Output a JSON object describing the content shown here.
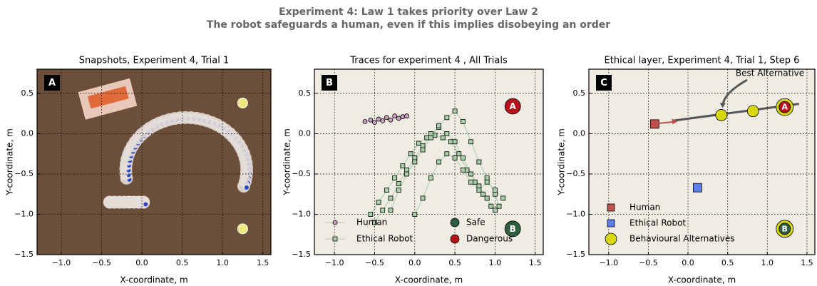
{
  "title": "Experiment 4: Law 1 takes priority over Law 2",
  "subtitle": "The robot safeguards a human, even if this implies disobeying an order",
  "chart_data": [
    {
      "type": "image",
      "title": "Snapshots, Experiment 4, Trial 1",
      "panel_label": "A",
      "xlabel": "X-coordinate, m",
      "ylabel": "Y-coordinate, m",
      "grid": true,
      "xlim": [
        -1.3,
        1.6
      ],
      "ylim": [
        -1.5,
        0.8
      ],
      "xticks": [
        {
          "value": -1,
          "label": "−1.0"
        },
        {
          "value": -0.5,
          "label": "−0.5"
        },
        {
          "value": 0,
          "label": "0.0"
        },
        0.5,
        {
          "value": 1,
          "label": "1.0"
        },
        1.5
      ],
      "yticks": [
        {
          "value": -1.5,
          "label": "−1.5"
        },
        {
          "value": -1,
          "label": "−1.0"
        },
        {
          "value": -0.5,
          "label": "−0.5"
        },
        {
          "value": 0,
          "label": "0.0"
        },
        0.5
      ]
    },
    {
      "type": "scatter",
      "title": "Traces for experiment 4 , All Trials",
      "panel_label": "B",
      "xlabel": "X-coordinate, m",
      "ylabel": "Y-coordinate, m",
      "grid": true,
      "xlim": [
        -1.25,
        1.6
      ],
      "ylim": [
        -1.5,
        0.8
      ],
      "xticks": [
        {
          "value": -1,
          "label": "−1.0"
        },
        {
          "value": -0.5,
          "label": "−0.5"
        },
        {
          "value": 0,
          "label": "0.0"
        },
        0.5,
        {
          "value": 1,
          "label": "1.0"
        },
        1.5
      ],
      "yticks": [
        {
          "value": -1.5,
          "label": "−1.5"
        },
        {
          "value": -1,
          "label": "−1.0"
        },
        {
          "value": -0.5,
          "label": "−0.5"
        },
        {
          "value": 0,
          "label": "0.0"
        },
        0.5
      ],
      "series": [
        {
          "name": "Human",
          "color": "#c9a0c0",
          "marker": "circle",
          "line": true,
          "x": [
            -0.62,
            -0.55,
            -0.5,
            -0.45,
            -0.4,
            -0.35,
            -0.3,
            -0.25,
            -0.2,
            -0.15,
            -0.1
          ],
          "y": [
            0.15,
            0.17,
            0.14,
            0.18,
            0.16,
            0.2,
            0.17,
            0.22,
            0.19,
            0.21,
            0.22
          ]
        },
        {
          "name": "Ethical Robot",
          "color": "#a8cfa8",
          "marker": "square",
          "line": true,
          "x": [
            -0.55,
            -0.45,
            -0.35,
            -0.25,
            -0.15,
            -0.05,
            0.05,
            0.15,
            0.25,
            0.35,
            0.45,
            0.55,
            0.65,
            0.75,
            0.85,
            0.95,
            null,
            -0.5,
            -0.4,
            -0.3,
            -0.2,
            -0.1,
            0.0,
            0.1,
            0.2,
            0.3,
            0.4,
            0.5,
            0.6,
            0.7,
            0.8,
            0.9,
            1.0,
            null,
            -0.3,
            -0.2,
            -0.1,
            0.0,
            0.1,
            0.2,
            0.3,
            0.4,
            0.5,
            0.6,
            0.7,
            0.8,
            0.9,
            1.0,
            1.05,
            null,
            0.0,
            0.1,
            0.2,
            0.3,
            0.4,
            0.5,
            0.6,
            0.7,
            0.8,
            0.9,
            1.0,
            1.1
          ],
          "y": [
            -1.0,
            -0.85,
            -0.7,
            -0.55,
            -0.4,
            -0.25,
            -0.12,
            -0.05,
            -0.02,
            -0.05,
            -0.1,
            -0.25,
            -0.45,
            -0.6,
            -0.75,
            -0.9,
            null,
            -1.1,
            -0.95,
            -0.8,
            -0.62,
            -0.45,
            -0.3,
            -0.15,
            0.0,
            0.08,
            0.0,
            -0.1,
            -0.3,
            -0.5,
            -0.65,
            -0.8,
            -0.95,
            null,
            -0.95,
            -0.7,
            -0.5,
            -0.35,
            -0.2,
            -0.05,
            0.1,
            0.2,
            0.28,
            0.15,
            -0.1,
            -0.35,
            -0.55,
            -0.75,
            -0.9,
            null,
            -1.0,
            -0.8,
            -0.55,
            -0.35,
            -0.25,
            -0.3,
            -0.45,
            -0.6,
            -0.7,
            -0.6,
            -0.7,
            -0.8
          ]
        },
        {
          "name": "Safe",
          "color": "#2e5e3e",
          "marker": "circle",
          "marker_label": "B",
          "x": [
            1.22
          ],
          "y": [
            -1.18
          ]
        },
        {
          "name": "Dangerous",
          "color": "#b5121b",
          "marker": "circle",
          "marker_label": "A",
          "x": [
            1.22
          ],
          "y": [
            0.34
          ]
        }
      ]
    },
    {
      "type": "scatter",
      "title": "Ethical layer, Experiment 4, Trial 1, Step 6",
      "panel_label": "C",
      "xlabel": "X-coordinate, m",
      "ylabel": "Y-coordinate, m",
      "grid": true,
      "xlim": [
        -1.25,
        1.6
      ],
      "ylim": [
        -1.5,
        0.8
      ],
      "xticks": [
        {
          "value": -1,
          "label": "−1.0"
        },
        {
          "value": -0.5,
          "label": "−0.5"
        },
        {
          "value": 0,
          "label": "0.0"
        },
        0.5,
        {
          "value": 1,
          "label": "1.0"
        },
        1.5
      ],
      "yticks": [
        {
          "value": -1.5,
          "label": "−1.5"
        },
        {
          "value": -1,
          "label": "−1.0"
        },
        {
          "value": -0.5,
          "label": "−0.5"
        },
        {
          "value": 0,
          "label": "0.0"
        },
        0.5
      ],
      "annotation": "Best Alternative",
      "trajectory": {
        "x": [
          -0.2,
          1.4
        ],
        "y": [
          0.16,
          0.37
        ]
      },
      "markers": [
        {
          "label": "A",
          "color": "#b5121b",
          "x": 1.22,
          "y": 0.33
        },
        {
          "label": "B",
          "color": "#2e5e3e",
          "x": 1.22,
          "y": -1.18
        }
      ],
      "series": [
        {
          "name": "Human",
          "color": "#c0504d",
          "marker": "square",
          "x": [
            -0.42
          ],
          "y": [
            0.12
          ]
        },
        {
          "name": "Ethical Robot",
          "color": "#5b7ff0",
          "marker": "square",
          "x": [
            0.12
          ],
          "y": [
            -0.67
          ]
        },
        {
          "name": "Behavioural Alternatives",
          "color": "#d8d810",
          "marker": "circle",
          "x": [
            0.42,
            0.82,
            1.22,
            1.22
          ],
          "y": [
            0.23,
            0.28,
            0.33,
            -1.18
          ]
        }
      ]
    }
  ]
}
